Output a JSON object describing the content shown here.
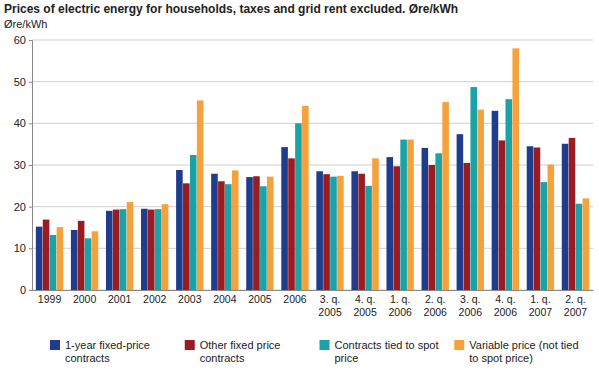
{
  "chart_data": {
    "type": "bar",
    "title": "Prices of electric energy for households, taxes and grid rent excluded. Øre/kWh",
    "y_label": "Øre/kWh",
    "categories": [
      "1999",
      "2000",
      "2001",
      "2002",
      "2003",
      "2004",
      "2005",
      "2006",
      "3. q. 2005",
      "4. q. 2005",
      "1. q. 2006",
      "2. q. 2006",
      "3. q. 2006",
      "4. q. 2006",
      "1. q. 2007",
      "2. q. 2007"
    ],
    "series": [
      {
        "name": "1-year fixed-price contracts",
        "color": "#1f3d8c",
        "values": [
          15.2,
          14.4,
          19.0,
          19.5,
          28.8,
          27.9,
          27.1,
          34.3,
          28.5,
          28.5,
          31.9,
          34.1,
          37.4,
          43.0,
          34.5,
          35.1
        ]
      },
      {
        "name": "Other fixed price contracts",
        "color": "#9b1b22",
        "values": [
          16.9,
          16.6,
          19.3,
          19.3,
          25.6,
          26.1,
          27.3,
          31.6,
          27.8,
          27.9,
          29.7,
          30.0,
          30.5,
          35.9,
          34.2,
          36.5
        ]
      },
      {
        "name": "Contracts tied to spot price",
        "color": "#1aa3a6",
        "values": [
          13.2,
          12.4,
          19.4,
          19.4,
          32.4,
          25.4,
          24.9,
          40.0,
          27.2,
          25.0,
          36.1,
          32.8,
          48.7,
          45.8,
          25.9,
          20.7
        ]
      },
      {
        "name": "Variable price (not tied to spot price)",
        "color": "#f5a23c",
        "values": [
          15.1,
          14.1,
          21.1,
          20.6,
          45.5,
          28.7,
          27.2,
          44.2,
          27.4,
          31.6,
          36.1,
          45.1,
          43.3,
          58.0,
          30.1,
          22.0
        ]
      }
    ],
    "ylim": [
      0,
      60
    ],
    "yticks": [
      0,
      10,
      20,
      30,
      40,
      50,
      60
    ],
    "grid": true,
    "legend": "bottom"
  }
}
